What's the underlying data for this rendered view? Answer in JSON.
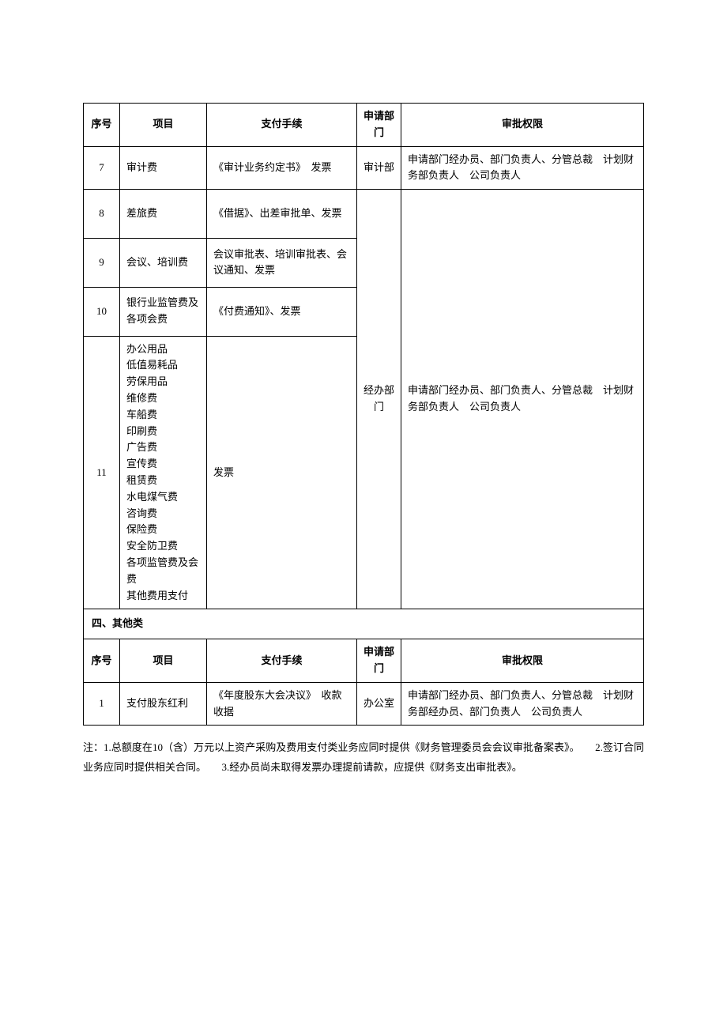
{
  "table1": {
    "headers": {
      "seq": "序号",
      "item": "项目",
      "proc": "支付手续",
      "dept": "申请部门",
      "auth": "审批权限"
    },
    "row7": {
      "seq": "7",
      "item": "审计费",
      "proc": "《审计业务约定书》　发票",
      "dept": "审计部",
      "auth": "申请部门经办员、部门负责人、分管总裁　计划财务部负责人　公司负责人"
    },
    "merged_dept": "经办部门",
    "merged_auth": "申请部门经办员、部门负责人、分管总裁　计划财务部负责人　公司负责人",
    "row8": {
      "seq": "8",
      "item": "差旅费",
      "proc": "《借据》、出差审批单、发票"
    },
    "row9": {
      "seq": "9",
      "item": "会议、培训费",
      "proc": "会议审批表、培训审批表、会议通知、发票"
    },
    "row10": {
      "seq": "10",
      "item": "银行业监管费及各项会费",
      "proc": "《付费通知》、发票"
    },
    "row11": {
      "seq": "11",
      "items": {
        "l1": "办公用品",
        "l2": "低值易耗品",
        "l3": "劳保用品",
        "l4": "维修费",
        "l5": "车船费",
        "l6": "印刷费",
        "l7": "广告费",
        "l8": "宣传费",
        "l9": "租赁费",
        "l10": "水电煤气费",
        "l11": "咨询费",
        "l12": "保险费",
        "l13": "安全防卫费",
        "l14": "各项监管费及会费",
        "l15": "其他费用支付"
      },
      "proc": "发票"
    }
  },
  "section4": "四、其他类",
  "table2": {
    "headers": {
      "seq": "序号",
      "item": "项目",
      "proc": "支付手续",
      "dept": "申请部门",
      "auth": "审批权限"
    },
    "row1": {
      "seq": "1",
      "item": "支付股东红利",
      "proc": "《年度股东大会决议》　收款收据",
      "dept": "办公室",
      "auth": "申请部门经办员、部门负责人、分管总裁　计划财务部经办员、部门负责人　公司负责人"
    }
  },
  "note": "注：1.总额度在10（含）万元以上资产采购及费用支付类业务应同时提供《财务管理委员会会议审批备案表》。　　2.签订合同业务应同时提供相关合同。　　3.经办员尚未取得发票办理提前请款，应提供《财务支出审批表》。"
}
